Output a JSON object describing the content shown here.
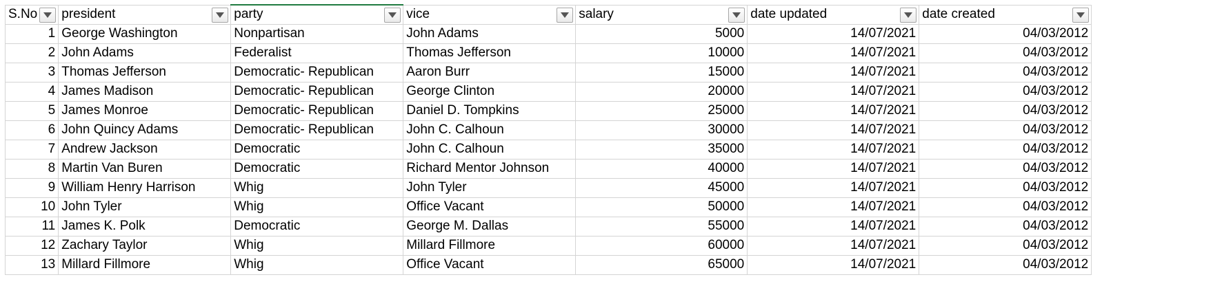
{
  "headers": [
    "S.No",
    "president",
    "party",
    "vice",
    "salary",
    "date updated",
    "date created"
  ],
  "rows": [
    [
      "1",
      "George Washington",
      "Nonpartisan",
      "John Adams",
      "5000",
      "14/07/2021",
      "04/03/2012"
    ],
    [
      "2",
      "John Adams",
      "Federalist",
      "Thomas Jefferson",
      "10000",
      "14/07/2021",
      "04/03/2012"
    ],
    [
      "3",
      "Thomas Jefferson",
      "Democratic- Republican",
      "Aaron Burr",
      "15000",
      "14/07/2021",
      "04/03/2012"
    ],
    [
      "4",
      "James Madison",
      "Democratic- Republican",
      "George Clinton",
      "20000",
      "14/07/2021",
      "04/03/2012"
    ],
    [
      "5",
      "James Monroe",
      "Democratic- Republican",
      "Daniel D. Tompkins",
      "25000",
      "14/07/2021",
      "04/03/2012"
    ],
    [
      "6",
      "John Quincy Adams",
      "Democratic- Republican",
      "John C. Calhoun",
      "30000",
      "14/07/2021",
      "04/03/2012"
    ],
    [
      "7",
      "Andrew Jackson",
      "Democratic",
      "John C. Calhoun",
      "35000",
      "14/07/2021",
      "04/03/2012"
    ],
    [
      "8",
      "Martin Van Buren",
      "Democratic",
      "Richard Mentor Johnson",
      "40000",
      "14/07/2021",
      "04/03/2012"
    ],
    [
      "9",
      "William Henry Harrison",
      "Whig",
      "John Tyler",
      "45000",
      "14/07/2021",
      "04/03/2012"
    ],
    [
      "10",
      "John Tyler",
      "Whig",
      "Office Vacant",
      "50000",
      "14/07/2021",
      "04/03/2012"
    ],
    [
      "11",
      "James K. Polk",
      "Democratic",
      "George M. Dallas",
      "55000",
      "14/07/2021",
      "04/03/2012"
    ],
    [
      "12",
      "Zachary Taylor",
      "Whig",
      "Millard Fillmore",
      "60000",
      "14/07/2021",
      "04/03/2012"
    ],
    [
      "13",
      "Millard Fillmore",
      "Whig",
      "Office Vacant",
      "65000",
      "14/07/2021",
      "04/03/2012"
    ]
  ],
  "active_column": "party",
  "accent_color": "#1f7a3f"
}
